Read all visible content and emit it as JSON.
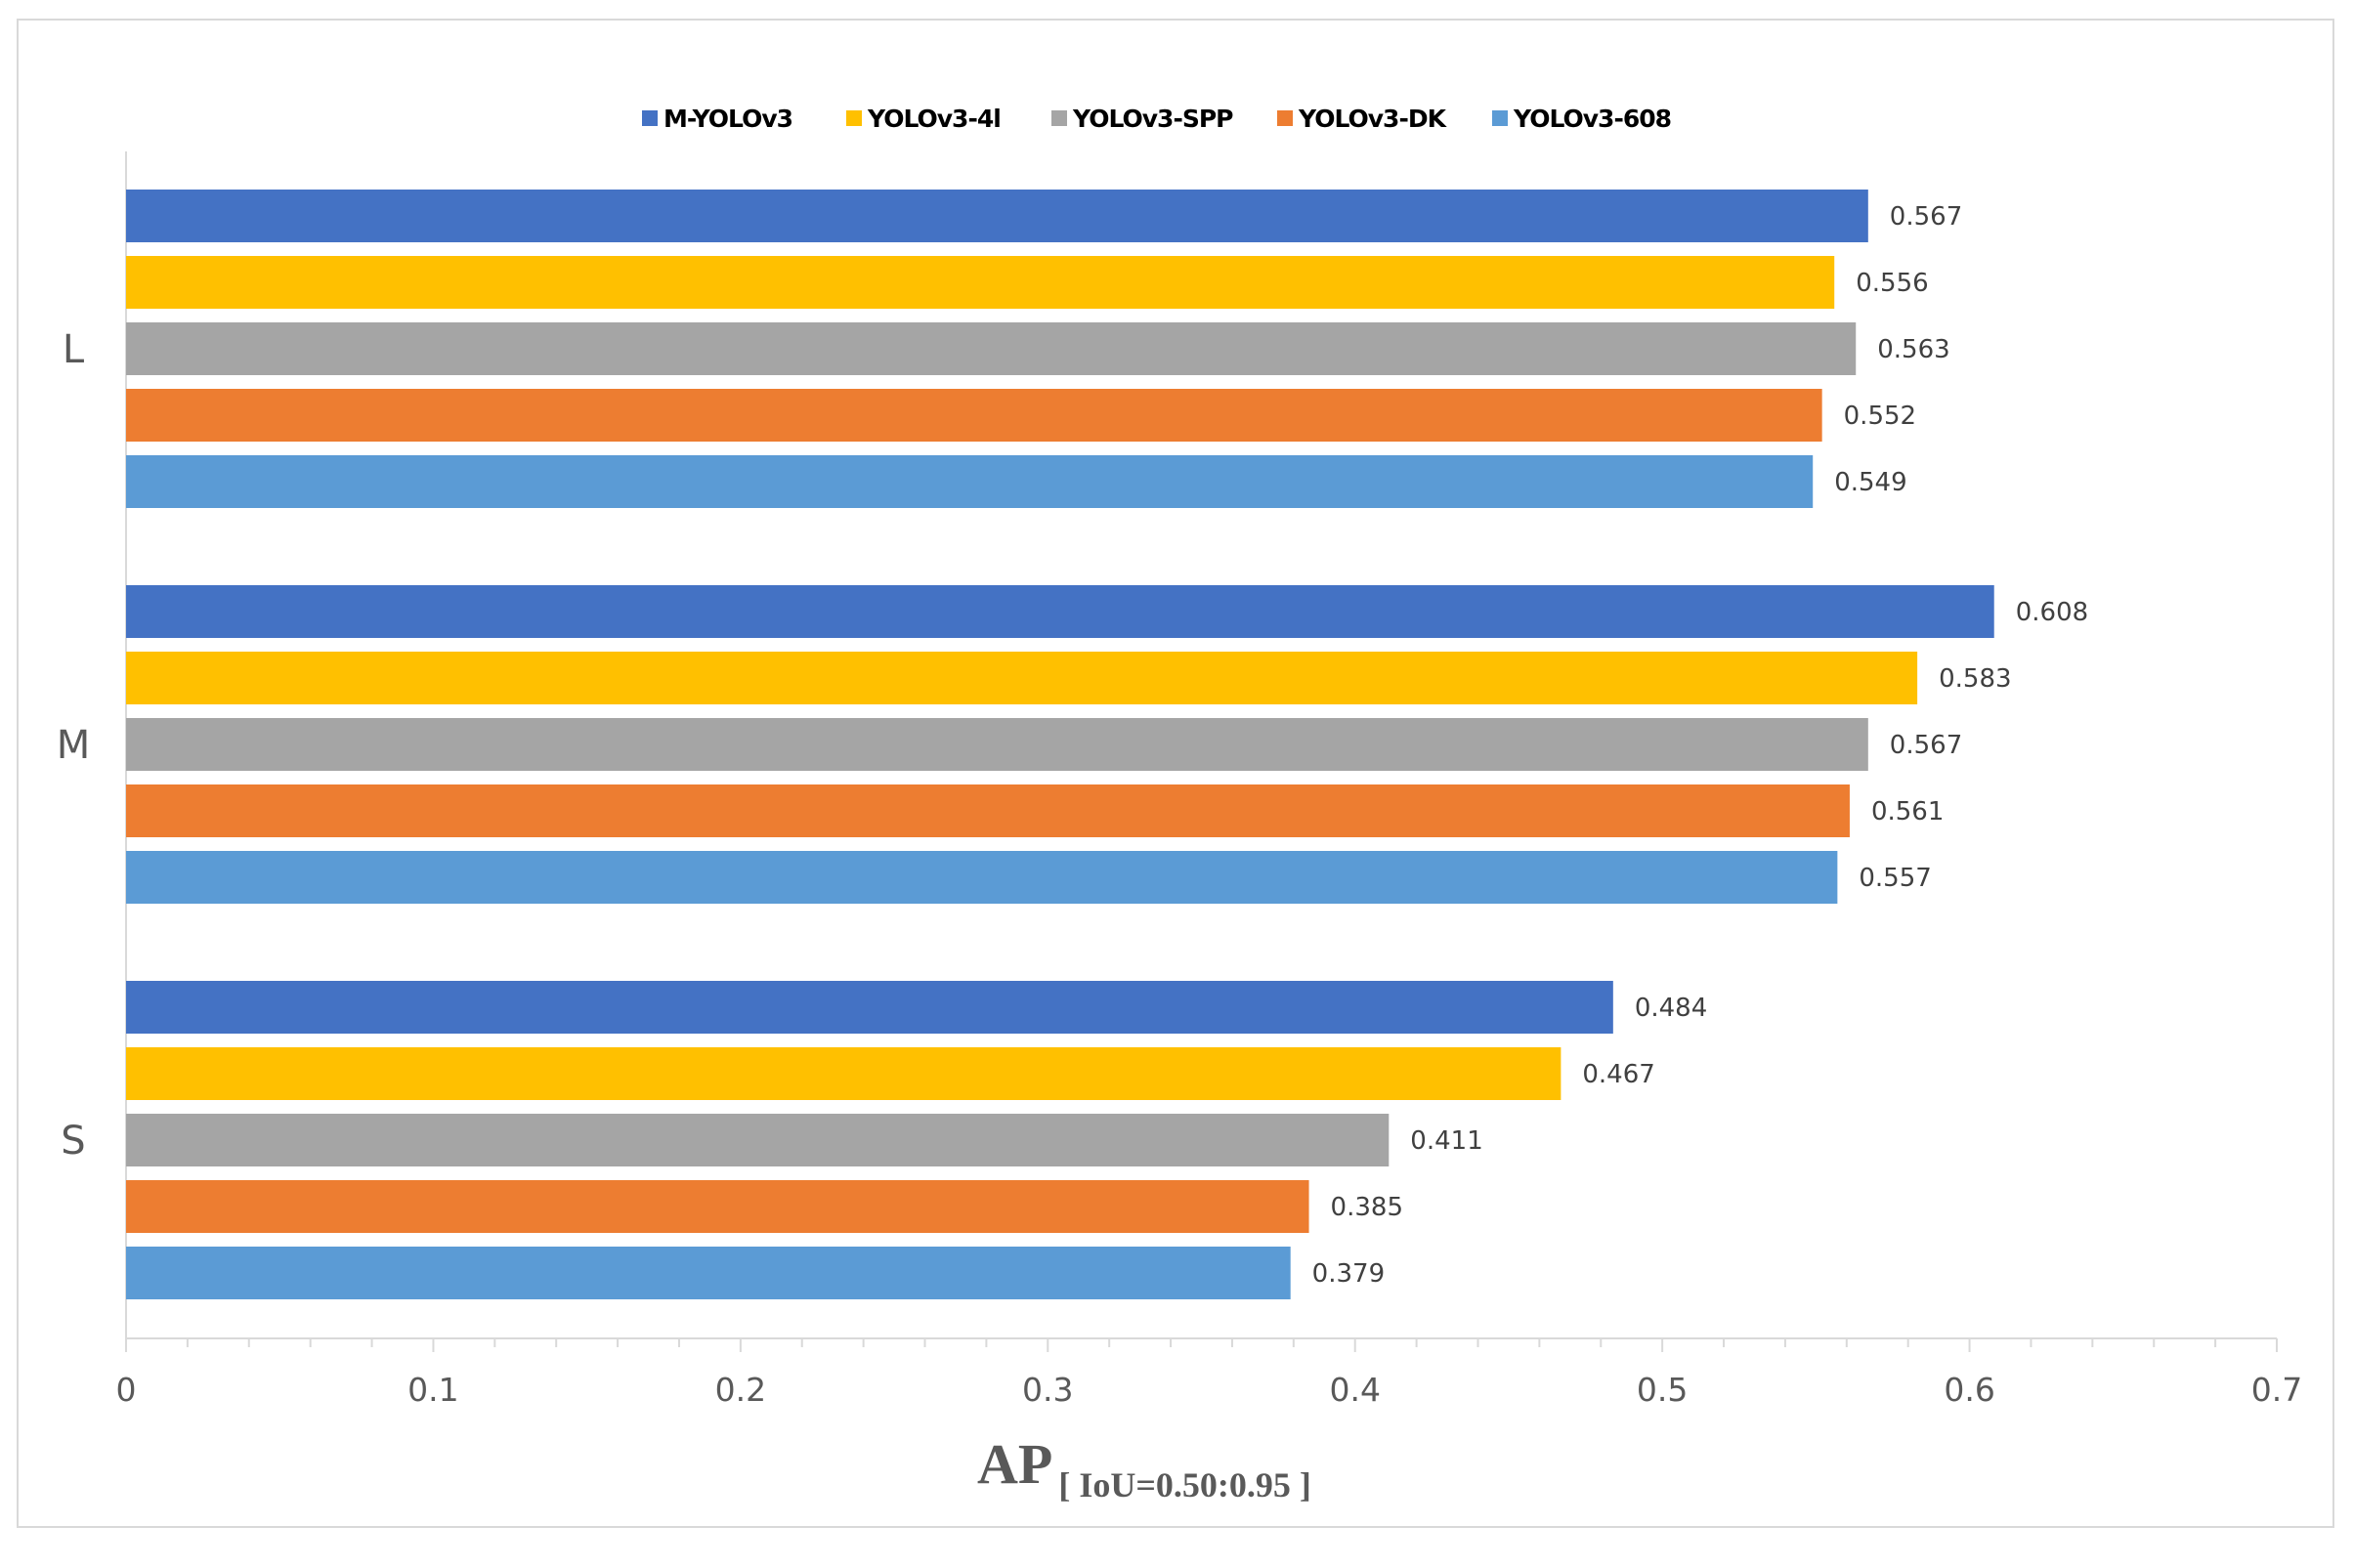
{
  "chart_data": {
    "type": "bar",
    "orientation": "horizontal",
    "categories": [
      "L",
      "M",
      "S"
    ],
    "series": [
      {
        "name": "M-YOLOv3",
        "color": "#4472C4",
        "values": [
          0.567,
          0.608,
          0.484
        ]
      },
      {
        "name": "YOLOv3-4l",
        "color": "#FFC000",
        "values": [
          0.556,
          0.583,
          0.467
        ]
      },
      {
        "name": "YOLOv3-SPP",
        "color": "#A5A5A5",
        "values": [
          0.563,
          0.567,
          0.411
        ]
      },
      {
        "name": "YOLOv3-DK",
        "color": "#ED7D31",
        "values": [
          0.552,
          0.561,
          0.385
        ]
      },
      {
        "name": "YOLOv3-608",
        "color": "#5B9BD5",
        "values": [
          0.549,
          0.557,
          0.379
        ]
      }
    ],
    "value_labels": [
      [
        "0.567",
        "0.608",
        "0.484"
      ],
      [
        "0.556",
        "0.583",
        "0.467"
      ],
      [
        "0.563",
        "0.567",
        "0.411"
      ],
      [
        "0.552",
        "0.561",
        "0.385"
      ],
      [
        "0.549",
        "0.557",
        "0.379"
      ]
    ],
    "xticks": [
      "0",
      "0.1",
      "0.2",
      "0.3",
      "0.4",
      "0.5",
      "0.6",
      "0.7"
    ],
    "xlim": [
      0,
      0.7
    ],
    "xlabel": {
      "main": "AP",
      "subscript": "[ IoU=0.50:0.95 ]"
    },
    "ylabel": "",
    "title": "",
    "legend_position": "top-center",
    "grid": false
  }
}
